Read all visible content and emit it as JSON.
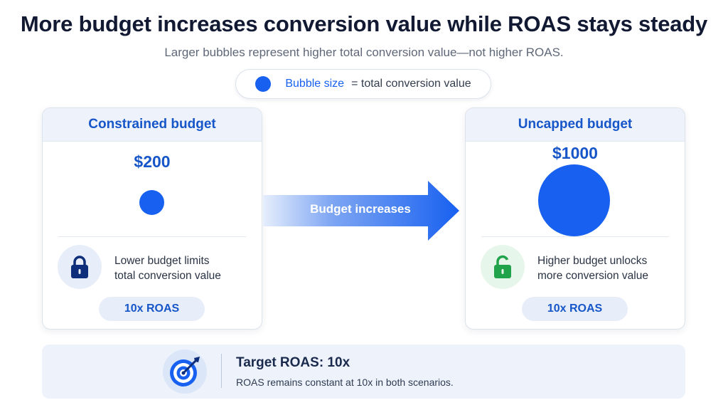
{
  "title": "More budget increases conversion value while ROAS stays steady",
  "subtitle": "Larger bubbles represent higher total conversion value—not higher ROAS.",
  "legend": {
    "key": "Bubble size",
    "desc": "= total conversion value",
    "color": "#1760f0"
  },
  "scenarios": [
    {
      "heading": "Constrained budget",
      "amount": "$200",
      "note_line1": "Lower budget limits",
      "note_line2": "total conversion value",
      "roas": "10x ROAS",
      "lock_icon": "lock-closed-icon",
      "lock_color": "#0e2d7a"
    },
    {
      "heading": "Uncapped budget",
      "amount": "$1000",
      "note_line1": "Higher budget unlocks",
      "note_line2": "more conversion value",
      "roas": "10x ROAS",
      "lock_icon": "lock-open-icon",
      "lock_color": "#20a34a"
    }
  ],
  "arrow_label": "Budget increases",
  "target": {
    "title": "Target ROAS: 10x",
    "desc_lead": "ROAS remains constant at 10x",
    "desc_tail": " in both scenarios."
  },
  "colors": {
    "accent": "#1760f0",
    "heading": "#1656c9",
    "panel": "#eef3fb"
  }
}
